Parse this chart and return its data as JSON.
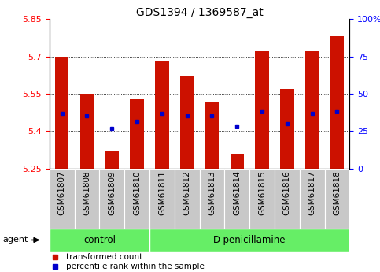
{
  "title": "GDS1394 / 1369587_at",
  "samples": [
    "GSM61807",
    "GSM61808",
    "GSM61809",
    "GSM61810",
    "GSM61811",
    "GSM61812",
    "GSM61813",
    "GSM61814",
    "GSM61815",
    "GSM61816",
    "GSM61817",
    "GSM61818"
  ],
  "red_values": [
    5.7,
    5.55,
    5.32,
    5.53,
    5.68,
    5.62,
    5.52,
    5.31,
    5.72,
    5.57,
    5.72,
    5.78
  ],
  "blue_values": [
    5.47,
    5.46,
    5.41,
    5.44,
    5.47,
    5.46,
    5.46,
    5.42,
    5.48,
    5.43,
    5.47,
    5.48
  ],
  "ylim": [
    5.25,
    5.85
  ],
  "yticks_left": [
    5.25,
    5.4,
    5.55,
    5.7,
    5.85
  ],
  "yticks_right": [
    0,
    25,
    50,
    75,
    100
  ],
  "control_count": 4,
  "dpen_count": 8,
  "bar_color": "#cc1100",
  "dot_color": "#0000cc",
  "bar_width": 0.55,
  "background_color": "#ffffff",
  "tick_bg_color": "#c8c8c8",
  "group_color": "#66ee66",
  "agent_label": "agent",
  "legend_items": [
    {
      "label": "transformed count",
      "color": "#cc1100"
    },
    {
      "label": "percentile rank within the sample",
      "color": "#0000cc"
    }
  ],
  "title_fontsize": 10,
  "tick_fontsize": 8,
  "label_fontsize": 7.5,
  "group_fontsize": 8.5
}
